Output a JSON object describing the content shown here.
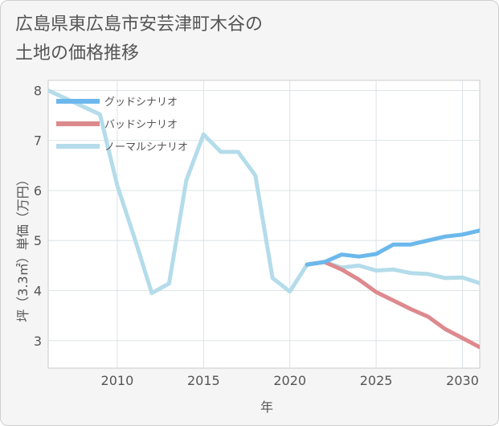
{
  "page": {
    "title": "広島県東広島市安芸津町木谷の\n土地の価格推移"
  },
  "chart_data": {
    "type": "line",
    "title": "広島県東広島市安芸津町木谷の土地の価格推移",
    "xlabel": "年",
    "ylabel": "坪（3.3㎡）単価（万円）",
    "xlim": [
      2006,
      2031
    ],
    "ylim": [
      2.45,
      8.2
    ],
    "xticks": [
      2010,
      2015,
      2020,
      2025,
      2030
    ],
    "yticks": [
      3,
      4,
      5,
      6,
      7,
      8
    ],
    "grid": true,
    "legend_position": "top-left",
    "series": [
      {
        "name": "グッドシナリオ",
        "color": "#6cb8ec",
        "x": [
          2021,
          2022,
          2023,
          2024,
          2025,
          2026,
          2027,
          2028,
          2029,
          2030,
          2031
        ],
        "y": [
          4.52,
          4.57,
          4.72,
          4.68,
          4.73,
          4.92,
          4.92,
          5.0,
          5.08,
          5.12,
          5.2
        ]
      },
      {
        "name": "バッドシナリオ",
        "color": "#dd8a8e",
        "x": [
          2021,
          2022,
          2023,
          2024,
          2025,
          2026,
          2027,
          2028,
          2029,
          2030,
          2031
        ],
        "y": [
          4.52,
          4.57,
          4.42,
          4.22,
          3.97,
          3.8,
          3.63,
          3.48,
          3.23,
          3.05,
          2.87
        ]
      },
      {
        "name": "ノーマルシナリオ",
        "color": "#b4dcea",
        "x": [
          2006,
          2009,
          2010,
          2011,
          2012,
          2013,
          2014,
          2015,
          2016,
          2017,
          2018,
          2019,
          2020,
          2021,
          2022,
          2023,
          2024,
          2025,
          2026,
          2027,
          2028,
          2029,
          2030,
          2031
        ],
        "y": [
          8.0,
          7.52,
          6.1,
          5.05,
          3.95,
          4.14,
          6.2,
          7.12,
          6.77,
          6.77,
          6.3,
          4.25,
          3.98,
          4.52,
          4.57,
          4.46,
          4.5,
          4.4,
          4.42,
          4.35,
          4.33,
          4.25,
          4.26,
          4.15
        ]
      }
    ]
  }
}
